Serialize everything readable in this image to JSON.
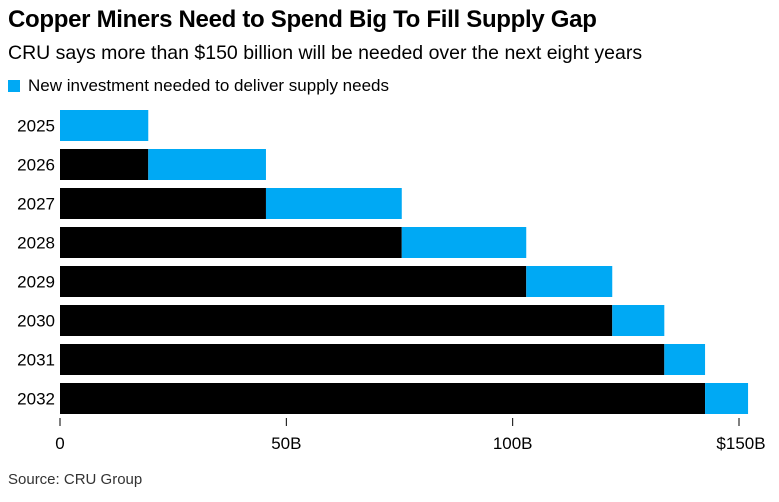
{
  "title": "Copper Miners Need to Spend Big To Fill Supply Gap",
  "subtitle": "CRU says more than $150 billion will be needed over the next eight years",
  "source": "Source: CRU Group",
  "colors": {
    "new": "#00a9f4",
    "cumulative": "#000000"
  },
  "chart_data": {
    "type": "bar",
    "orientation": "horizontal",
    "stacked": true,
    "categories": [
      "2025",
      "2026",
      "2027",
      "2028",
      "2029",
      "2030",
      "2031",
      "2032"
    ],
    "series": [
      {
        "values": [
          0,
          19.5,
          45.5,
          75.5,
          103,
          122,
          133.5,
          142.5
        ]
      },
      {
        "name": "New investment needed to deliver supply needs",
        "values": [
          19.5,
          26,
          30,
          27.5,
          19,
          11.5,
          9,
          9.5
        ]
      }
    ],
    "xlim": [
      0,
      150
    ],
    "x_ticks": [
      0,
      50,
      100,
      150
    ],
    "x_tick_labels": [
      "0",
      "50B",
      "100B",
      "$150B"
    ],
    "grid": false,
    "legend_position": "top-left"
  }
}
